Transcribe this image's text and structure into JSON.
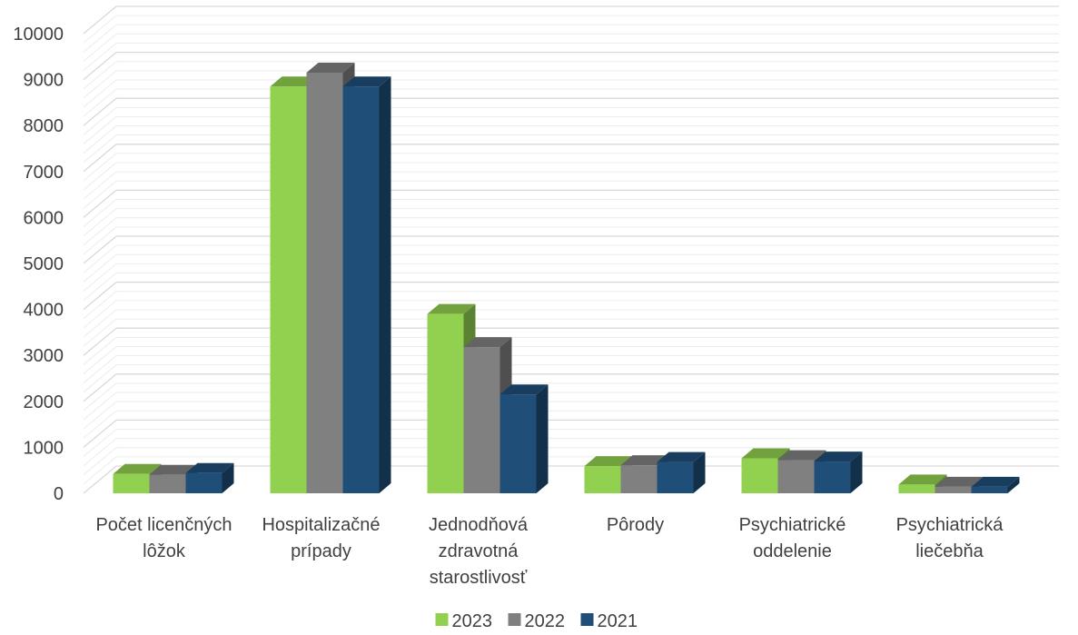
{
  "chart_data": {
    "type": "bar",
    "style": "3d-clustered-column",
    "categories": [
      [
        "Počet licenčných",
        "lôžok"
      ],
      [
        "Hospitalizačné",
        "prípady"
      ],
      [
        "Jednodňová",
        "zdravotná",
        "starostlivosť"
      ],
      [
        "Pôrody"
      ],
      [
        "Psychiatrické",
        "oddelenie"
      ],
      [
        "Psychiatrická",
        "liečebňa"
      ]
    ],
    "series": [
      {
        "name": "2023",
        "color": "#92d050",
        "values": [
          420,
          8850,
          3900,
          590,
          760,
          190
        ]
      },
      {
        "name": "2022",
        "color": "#808080",
        "values": [
          400,
          9150,
          3180,
          610,
          720,
          140
        ]
      },
      {
        "name": "2021",
        "color": "#1f4e79",
        "values": [
          440,
          8850,
          2150,
          680,
          690,
          140
        ]
      }
    ],
    "ylim": [
      0,
      10000
    ],
    "yticks": [
      "0",
      "1000",
      "2000",
      "3000",
      "4000",
      "5000",
      "6000",
      "7000",
      "8000",
      "9000",
      "10000"
    ],
    "grid": true,
    "legend_position": "bottom"
  }
}
